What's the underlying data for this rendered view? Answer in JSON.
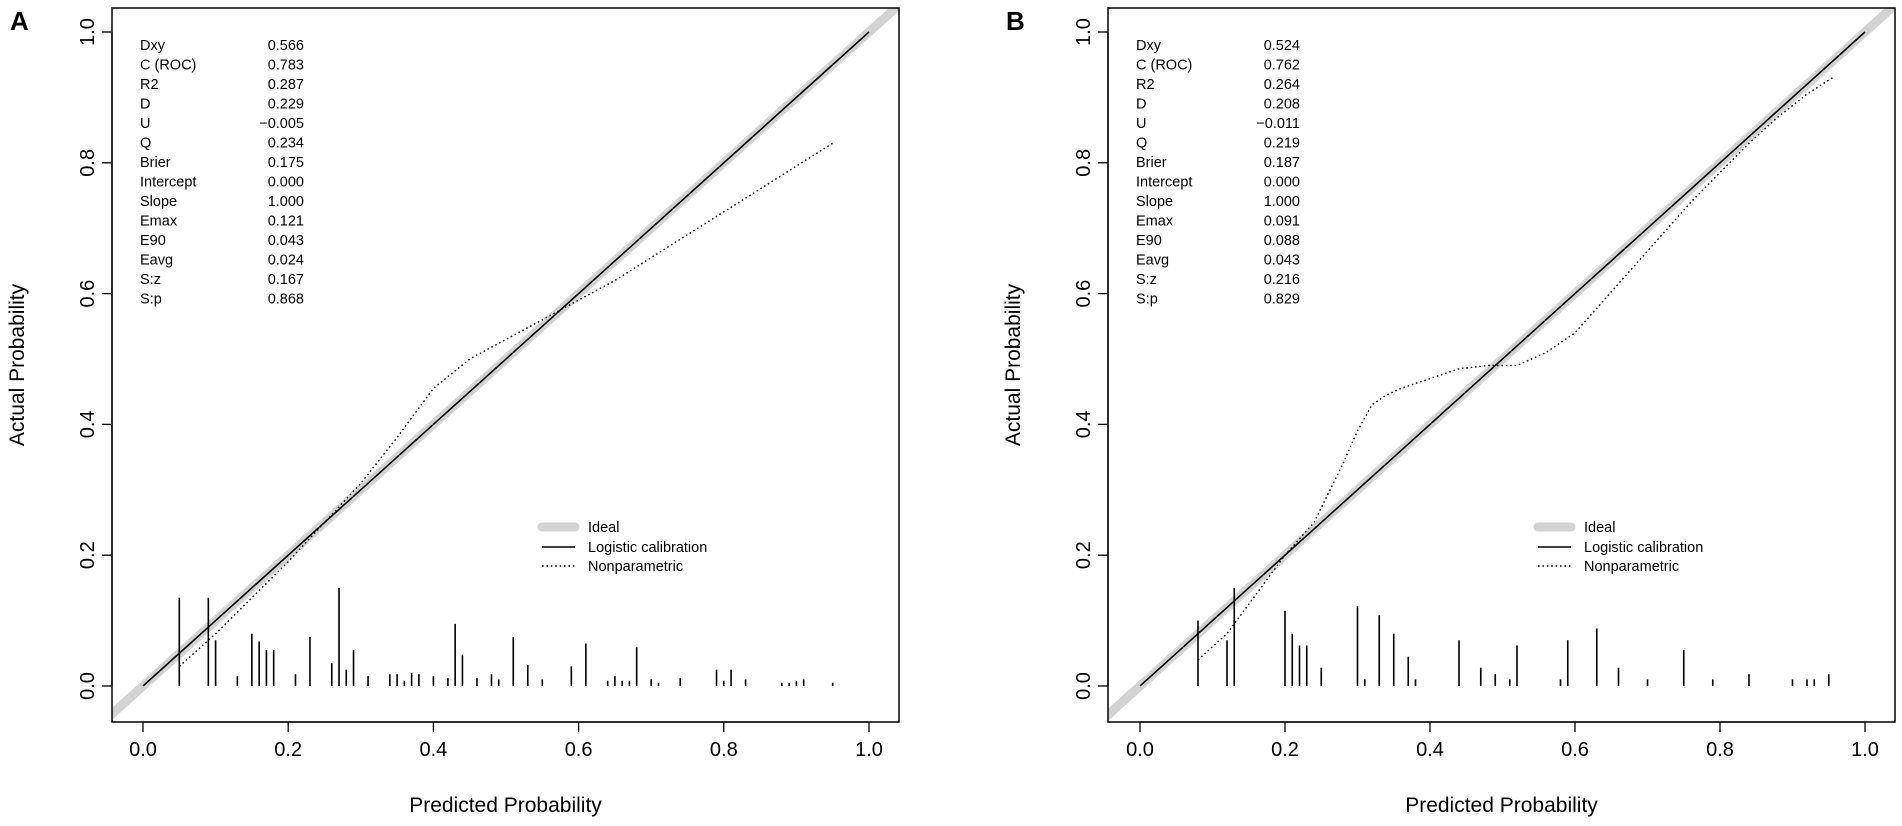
{
  "chart_data": [
    {
      "panel_label": "A",
      "type": "line",
      "xlabel": "Predicted Probability",
      "ylabel": "Actual Probability",
      "xlim": [
        0,
        1
      ],
      "ylim": [
        0,
        1
      ],
      "x_ticks": [
        "0.0",
        "0.2",
        "0.4",
        "0.6",
        "0.8",
        "1.0"
      ],
      "y_ticks": [
        "0.0",
        "0.2",
        "0.4",
        "0.6",
        "0.8",
        "1.0"
      ],
      "grid": false,
      "legend_position": "bottom-right",
      "stats": [
        {
          "name": "Dxy",
          "value": "0.566"
        },
        {
          "name": "C (ROC)",
          "value": "0.783"
        },
        {
          "name": "R2",
          "value": "0.287"
        },
        {
          "name": "D",
          "value": "0.229"
        },
        {
          "name": "U",
          "value": "−0.005"
        },
        {
          "name": "Q",
          "value": "0.234"
        },
        {
          "name": "Brier",
          "value": "0.175"
        },
        {
          "name": "Intercept",
          "value": "0.000"
        },
        {
          "name": "Slope",
          "value": "1.000"
        },
        {
          "name": "Emax",
          "value": "0.121"
        },
        {
          "name": "E90",
          "value": "0.043"
        },
        {
          "name": "Eavg",
          "value": "0.024"
        },
        {
          "name": "S:z",
          "value": "0.167"
        },
        {
          "name": "S:p",
          "value": "0.868"
        }
      ],
      "series": [
        {
          "name": "Ideal",
          "style": "thick-gray",
          "x": [
            -0.05,
            1.05
          ],
          "y": [
            -0.05,
            1.05
          ]
        },
        {
          "name": "Logistic calibration",
          "style": "solid",
          "x": [
            0.0,
            1.0
          ],
          "y": [
            0.0,
            1.0
          ]
        },
        {
          "name": "Nonparametric",
          "style": "dotted",
          "x": [
            0.05,
            0.1,
            0.15,
            0.2,
            0.25,
            0.3,
            0.35,
            0.4,
            0.45,
            0.5,
            0.55,
            0.6,
            0.65,
            0.7,
            0.75,
            0.8,
            0.85,
            0.9,
            0.95
          ],
          "y": [
            0.03,
            0.08,
            0.135,
            0.19,
            0.25,
            0.31,
            0.38,
            0.455,
            0.5,
            0.53,
            0.56,
            0.59,
            0.62,
            0.655,
            0.69,
            0.725,
            0.76,
            0.795,
            0.83
          ]
        }
      ],
      "rug": [
        [
          0.05,
          0.135
        ],
        [
          0.09,
          0.135
        ],
        [
          0.1,
          0.07
        ],
        [
          0.13,
          0.015
        ],
        [
          0.15,
          0.08
        ],
        [
          0.16,
          0.068
        ],
        [
          0.17,
          0.055
        ],
        [
          0.18,
          0.055
        ],
        [
          0.21,
          0.018
        ],
        [
          0.23,
          0.075
        ],
        [
          0.26,
          0.035
        ],
        [
          0.27,
          0.15
        ],
        [
          0.28,
          0.025
        ],
        [
          0.29,
          0.055
        ],
        [
          0.31,
          0.015
        ],
        [
          0.34,
          0.018
        ],
        [
          0.35,
          0.018
        ],
        [
          0.36,
          0.008
        ],
        [
          0.37,
          0.02
        ],
        [
          0.38,
          0.018
        ],
        [
          0.4,
          0.015
        ],
        [
          0.42,
          0.012
        ],
        [
          0.43,
          0.095
        ],
        [
          0.44,
          0.048
        ],
        [
          0.46,
          0.012
        ],
        [
          0.48,
          0.018
        ],
        [
          0.49,
          0.01
        ],
        [
          0.51,
          0.075
        ],
        [
          0.53,
          0.032
        ],
        [
          0.55,
          0.01
        ],
        [
          0.59,
          0.03
        ],
        [
          0.61,
          0.065
        ],
        [
          0.64,
          0.008
        ],
        [
          0.65,
          0.015
        ],
        [
          0.66,
          0.008
        ],
        [
          0.67,
          0.008
        ],
        [
          0.68,
          0.06
        ],
        [
          0.7,
          0.01
        ],
        [
          0.71,
          0.005
        ],
        [
          0.74,
          0.012
        ],
        [
          0.79,
          0.025
        ],
        [
          0.8,
          0.008
        ],
        [
          0.81,
          0.025
        ],
        [
          0.83,
          0.01
        ],
        [
          0.88,
          0.005
        ],
        [
          0.89,
          0.005
        ],
        [
          0.9,
          0.008
        ],
        [
          0.91,
          0.01
        ],
        [
          0.95,
          0.005
        ]
      ]
    },
    {
      "panel_label": "B",
      "type": "line",
      "xlabel": "Predicted Probability",
      "ylabel": "Actual Probability",
      "xlim": [
        0,
        1
      ],
      "ylim": [
        0,
        1
      ],
      "x_ticks": [
        "0.0",
        "0.2",
        "0.4",
        "0.6",
        "0.8",
        "1.0"
      ],
      "y_ticks": [
        "0.0",
        "0.2",
        "0.4",
        "0.6",
        "0.8",
        "1.0"
      ],
      "grid": false,
      "legend_position": "bottom-right",
      "stats": [
        {
          "name": "Dxy",
          "value": "0.524"
        },
        {
          "name": "C (ROC)",
          "value": "0.762"
        },
        {
          "name": "R2",
          "value": "0.264"
        },
        {
          "name": "D",
          "value": "0.208"
        },
        {
          "name": "U",
          "value": "−0.011"
        },
        {
          "name": "Q",
          "value": "0.219"
        },
        {
          "name": "Brier",
          "value": "0.187"
        },
        {
          "name": "Intercept",
          "value": "0.000"
        },
        {
          "name": "Slope",
          "value": "1.000"
        },
        {
          "name": "Emax",
          "value": "0.091"
        },
        {
          "name": "E90",
          "value": "0.088"
        },
        {
          "name": "Eavg",
          "value": "0.043"
        },
        {
          "name": "S:z",
          "value": "0.216"
        },
        {
          "name": "S:p",
          "value": "0.829"
        }
      ],
      "series": [
        {
          "name": "Ideal",
          "style": "thick-gray",
          "x": [
            -0.05,
            1.05
          ],
          "y": [
            -0.05,
            1.05
          ]
        },
        {
          "name": "Logistic calibration",
          "style": "solid",
          "x": [
            0.0,
            1.0
          ],
          "y": [
            0.0,
            1.0
          ]
        },
        {
          "name": "Nonparametric",
          "style": "dotted",
          "x": [
            0.08,
            0.12,
            0.16,
            0.2,
            0.24,
            0.28,
            0.3,
            0.32,
            0.34,
            0.36,
            0.4,
            0.44,
            0.48,
            0.52,
            0.56,
            0.6,
            0.64,
            0.68,
            0.72,
            0.76,
            0.8,
            0.84,
            0.88,
            0.92,
            0.955
          ],
          "y": [
            0.04,
            0.08,
            0.14,
            0.2,
            0.25,
            0.34,
            0.39,
            0.43,
            0.445,
            0.455,
            0.47,
            0.485,
            0.49,
            0.49,
            0.51,
            0.54,
            0.59,
            0.64,
            0.69,
            0.74,
            0.785,
            0.83,
            0.87,
            0.905,
            0.93
          ]
        }
      ],
      "rug": [
        [
          0.08,
          0.1
        ],
        [
          0.12,
          0.07
        ],
        [
          0.13,
          0.15
        ],
        [
          0.2,
          0.115
        ],
        [
          0.21,
          0.08
        ],
        [
          0.22,
          0.062
        ],
        [
          0.23,
          0.062
        ],
        [
          0.25,
          0.028
        ],
        [
          0.3,
          0.122
        ],
        [
          0.31,
          0.01
        ],
        [
          0.33,
          0.108
        ],
        [
          0.35,
          0.08
        ],
        [
          0.37,
          0.045
        ],
        [
          0.38,
          0.01
        ],
        [
          0.44,
          0.07
        ],
        [
          0.47,
          0.028
        ],
        [
          0.49,
          0.018
        ],
        [
          0.51,
          0.01
        ],
        [
          0.52,
          0.062
        ],
        [
          0.58,
          0.01
        ],
        [
          0.59,
          0.07
        ],
        [
          0.63,
          0.088
        ],
        [
          0.66,
          0.028
        ],
        [
          0.7,
          0.01
        ],
        [
          0.75,
          0.055
        ],
        [
          0.79,
          0.01
        ],
        [
          0.84,
          0.018
        ],
        [
          0.9,
          0.01
        ],
        [
          0.92,
          0.01
        ],
        [
          0.93,
          0.01
        ],
        [
          0.95,
          0.018
        ]
      ]
    }
  ],
  "legend": {
    "ideal_label": "Ideal",
    "logistic_label": "Logistic calibration",
    "nonparametric_label": "Nonparametric"
  },
  "colors": {
    "ideal": "#d3d3d3",
    "line": "#000000",
    "axis": "#000000"
  }
}
